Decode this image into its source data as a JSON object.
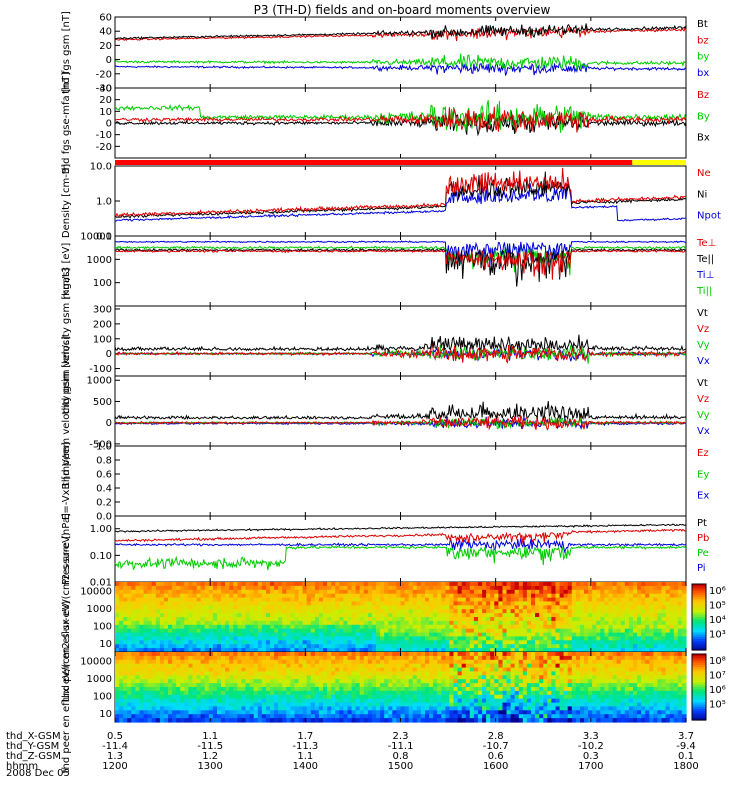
{
  "title": "P3 (TH-D) fields and on-board moments overview",
  "chart_data": [
    {
      "type": "line",
      "ylabel": "thd fgs gsm [nT]",
      "ylim": [
        -40,
        60
      ],
      "yticks": [
        "60",
        "40",
        "20",
        "0",
        "-20",
        "-40"
      ],
      "series": [
        {
          "name": "Bt",
          "color": "#000000"
        },
        {
          "name": "bz",
          "color": "#dd0000"
        },
        {
          "name": "by",
          "color": "#00cc00"
        },
        {
          "name": "bx",
          "color": "#0000dd"
        }
      ]
    },
    {
      "type": "line",
      "ylabel": "thd fgs gse-mfa [nT]",
      "ylim": [
        -30,
        30
      ],
      "yticks": [
        "30",
        "20",
        "10",
        "0",
        "-10",
        "-20"
      ],
      "series": [
        {
          "name": "Bz",
          "color": "#dd0000"
        },
        {
          "name": "By",
          "color": "#00cc00"
        },
        {
          "name": "Bx",
          "color": "#000000"
        }
      ]
    },
    {
      "type": "line",
      "ylabel": "Density [cm-3]",
      "scale": "log",
      "ylim": [
        0.1,
        10
      ],
      "yticks": [
        "10.0",
        "1.0",
        "0.1"
      ],
      "series": [
        {
          "name": "Ne",
          "color": "#dd0000"
        },
        {
          "name": "Ni",
          "color": "#000000"
        },
        {
          "name": "Npot",
          "color": "#0000dd"
        }
      ]
    },
    {
      "type": "line",
      "ylabel": "mgat3 [eV]",
      "scale": "log",
      "ylim": [
        10,
        10000
      ],
      "yticks": [
        "10000",
        "1000",
        "100"
      ],
      "series": [
        {
          "name": "Te⊥",
          "color": "#dd0000"
        },
        {
          "name": "Te||",
          "color": "#000000"
        },
        {
          "name": "Ti⊥",
          "color": "#0000dd"
        },
        {
          "name": "Ti||",
          "color": "#00cc00"
        }
      ]
    },
    {
      "type": "line",
      "ylabel": "thd peim velocity gsm [km/s]",
      "ylim": [
        -150,
        320
      ],
      "yticks": [
        "300",
        "200",
        "100",
        "0",
        "-100"
      ],
      "series": [
        {
          "name": "Vt",
          "color": "#000000"
        },
        {
          "name": "Vz",
          "color": "#dd0000"
        },
        {
          "name": "Vy",
          "color": "#00cc00"
        },
        {
          "name": "Vx",
          "color": "#0000dd"
        }
      ]
    },
    {
      "type": "line",
      "ylabel": "thd peem velocity gsm [km/s]",
      "ylim": [
        -550,
        1100
      ],
      "yticks": [
        "1000",
        "500",
        "0",
        "-500"
      ],
      "series": [
        {
          "name": "Vt",
          "color": "#000000"
        },
        {
          "name": "Vz",
          "color": "#dd0000"
        },
        {
          "name": "Vy",
          "color": "#00cc00"
        },
        {
          "name": "Vx",
          "color": "#0000dd"
        }
      ]
    },
    {
      "type": "line",
      "ylabel": "E=-VxB [mV/m]",
      "ylim": [
        0,
        1
      ],
      "yticks": [
        "1.0",
        "0.8",
        "0.6",
        "0.4",
        "0.2",
        "0.0"
      ],
      "series": [
        {
          "name": "Ez",
          "color": "#dd0000"
        },
        {
          "name": "Ey",
          "color": "#00cc00"
        },
        {
          "name": "Ex",
          "color": "#0000dd"
        }
      ]
    },
    {
      "type": "line",
      "ylabel": "Pressure [nPa]",
      "scale": "log",
      "ylim": [
        0.01,
        3
      ],
      "yticks": [
        "1.00",
        "0.10",
        "0.01"
      ],
      "series": [
        {
          "name": "Pt",
          "color": "#000000"
        },
        {
          "name": "Pb",
          "color": "#dd0000"
        },
        {
          "name": "Pe",
          "color": "#00cc00"
        },
        {
          "name": "Pi",
          "color": "#0000dd"
        }
      ]
    },
    {
      "type": "heatmap",
      "ylabel": "thd peir en eflux eV/(cm2-s-sr-eV)",
      "scale": "log",
      "ylim": [
        5,
        30000
      ],
      "yticks": [
        "10000",
        "1000",
        "100",
        "10"
      ],
      "colorbar": {
        "ticks": [
          "10⁶",
          "10⁵",
          "10⁴",
          "10³"
        ]
      }
    },
    {
      "type": "heatmap",
      "ylabel": "thd peer en eflux eV/(cm2-s-sr-eV)",
      "scale": "log",
      "ylim": [
        8,
        30000
      ],
      "yticks": [
        "10000",
        "1000",
        "100",
        "10"
      ],
      "colorbar": {
        "ticks": [
          "10⁸",
          "10⁷",
          "10⁶",
          "10⁵"
        ]
      }
    }
  ],
  "xaxis": {
    "rows": [
      {
        "label": "thd_X-GSM",
        "values": [
          "0.5",
          "1.1",
          "1.7",
          "2.3",
          "2.8",
          "3.3",
          "3.7"
        ]
      },
      {
        "label": "thd_Y-GSM",
        "values": [
          "-11.4",
          "-11.5",
          "-11.3",
          "-11.1",
          "-10.7",
          "-10.2",
          "-9.4"
        ]
      },
      {
        "label": "thd_Z-GSM",
        "values": [
          "1.3",
          "1.2",
          "1.1",
          "0.8",
          "0.6",
          "0.3",
          "0.1"
        ]
      },
      {
        "label": "hhmm",
        "values": [
          "1200",
          "1300",
          "1400",
          "1500",
          "1600",
          "1700",
          "1800"
        ]
      }
    ],
    "date": "2008 Dec 05"
  }
}
